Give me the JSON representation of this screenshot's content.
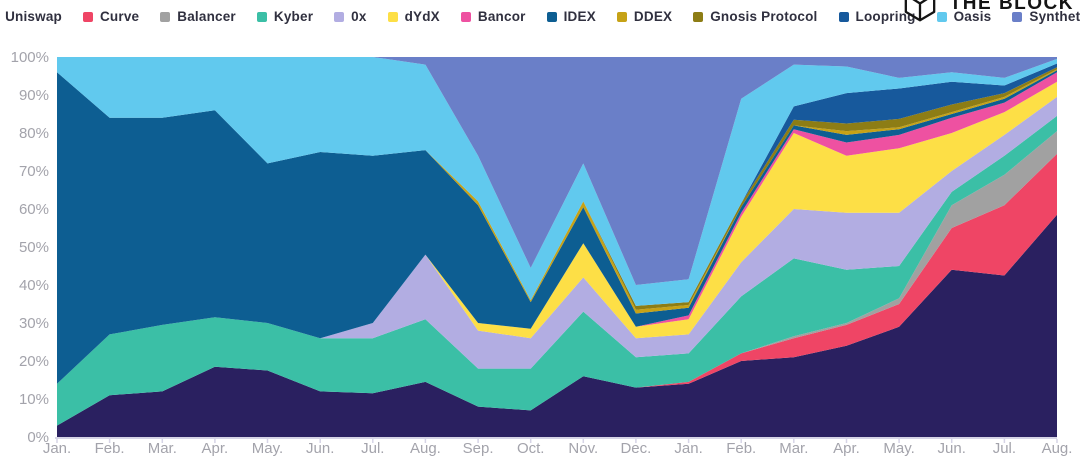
{
  "logo": {
    "text": "THE BLOCK",
    "icon": "cube-wireframe"
  },
  "axes": {
    "y_ticks": [
      "100%",
      "90%",
      "80%",
      "70%",
      "60%",
      "50%",
      "40%",
      "30%",
      "20%",
      "10%",
      "0%"
    ],
    "x_labels": [
      "Jan.",
      "Feb.",
      "Mar.",
      "Apr.",
      "May.",
      "Jun.",
      "Jul.",
      "Aug.",
      "Sep.",
      "Oct.",
      "Nov.",
      "Dec.",
      "Jan.",
      "Feb.",
      "Mar.",
      "Apr.",
      "May.",
      "Jun.",
      "Jul.",
      "Aug."
    ]
  },
  "chart_data": {
    "type": "area",
    "stacked": true,
    "percent_stacked": true,
    "legend_position": "top",
    "grid": false,
    "ylim": [
      0,
      100
    ],
    "ylabel": "",
    "xlabel": "",
    "categories": [
      "Jan.",
      "Feb.",
      "Mar.",
      "Apr.",
      "May.",
      "Jun.",
      "Jul.",
      "Aug.",
      "Sep.",
      "Oct.",
      "Nov.",
      "Dec.",
      "Jan.",
      "Feb.",
      "Mar.",
      "Apr.",
      "May.",
      "Jun.",
      "Jul.",
      "Aug."
    ],
    "units": "percent share of DEX volume",
    "series": [
      {
        "name": "Uniswap",
        "color": "#2a2060",
        "values": [
          3,
          11,
          12,
          18.5,
          17.5,
          12,
          11.5,
          14.5,
          8,
          7,
          16,
          13,
          14,
          20,
          21,
          24,
          29,
          44,
          42.5,
          58.5
        ]
      },
      {
        "name": "Curve",
        "color": "#ef4565",
        "values": [
          0,
          0,
          0,
          0,
          0,
          0,
          0,
          0,
          0,
          0,
          0,
          0,
          0.5,
          2,
          5,
          5.5,
          6,
          11,
          18.5,
          16
        ]
      },
      {
        "name": "Balancer",
        "color": "#a1a1a1",
        "values": [
          0,
          0,
          0,
          0,
          0,
          0,
          0,
          0,
          0,
          0,
          0,
          0,
          0,
          0,
          0.5,
          0.5,
          1.5,
          6,
          8,
          6
        ]
      },
      {
        "name": "Kyber",
        "color": "#3bbfa6",
        "values": [
          11,
          16,
          17.5,
          13,
          12.5,
          14,
          14.5,
          16.5,
          10,
          11,
          17,
          8,
          7.5,
          15,
          20.5,
          14,
          8.5,
          3.5,
          5,
          4
        ]
      },
      {
        "name": "0x",
        "color": "#b2ade2",
        "values": [
          0,
          0,
          0,
          0,
          0,
          0,
          4,
          17,
          10,
          8,
          9,
          5,
          5,
          9,
          13,
          15,
          14,
          5.5,
          5.5,
          5
        ]
      },
      {
        "name": "dYdX",
        "color": "#fddf46",
        "values": [
          0,
          0,
          0,
          0,
          0,
          0,
          0,
          0,
          2,
          2.5,
          9,
          3,
          4,
          12,
          20,
          15,
          17,
          10,
          6,
          4
        ]
      },
      {
        "name": "Bancor",
        "color": "#ee51a1",
        "values": [
          0,
          0,
          0,
          0,
          0,
          0,
          0,
          0,
          0,
          0,
          0,
          0,
          1,
          1,
          1,
          3.5,
          3.5,
          4,
          2.5,
          2.5
        ]
      },
      {
        "name": "IDEX",
        "color": "#0d5e92",
        "values": [
          82,
          57,
          54.5,
          54.5,
          42,
          49,
          44,
          27.5,
          31,
          7,
          9.5,
          3.5,
          2,
          1.5,
          1,
          2,
          1.5,
          1,
          1,
          0.5
        ]
      },
      {
        "name": "DDEX",
        "color": "#c6a216",
        "values": [
          0,
          0,
          0,
          0,
          0,
          0,
          0,
          0,
          1,
          0.5,
          1.5,
          1,
          0.75,
          0,
          0,
          1,
          0.5,
          0.5,
          0.5,
          0.3
        ]
      },
      {
        "name": "Gnosis Protocol",
        "color": "#8d7d15",
        "values": [
          0,
          0,
          0,
          0,
          0,
          0,
          0,
          0,
          0,
          0,
          0,
          1,
          0.75,
          1,
          1.5,
          2,
          2.2,
          2,
          1,
          0.5
        ]
      },
      {
        "name": "Loopring",
        "color": "#17599c",
        "values": [
          0,
          0,
          0,
          0,
          0,
          0,
          0,
          0,
          0,
          0,
          0,
          0,
          0,
          0,
          3.5,
          8,
          8,
          6,
          2,
          1
        ]
      },
      {
        "name": "Oasis",
        "color": "#61c9ee",
        "values": [
          4,
          16,
          16,
          14,
          28,
          25,
          26,
          22.5,
          12,
          8.5,
          10,
          5.5,
          6,
          27.5,
          11,
          7,
          2.8,
          2.5,
          2,
          1.2
        ]
      },
      {
        "name": "Synthetix",
        "color": "#6a7fc8",
        "values": [
          0,
          0,
          0,
          0,
          0,
          0,
          0,
          2,
          26,
          55.5,
          28,
          60,
          58.5,
          11,
          2,
          2.5,
          5.5,
          4,
          5.5,
          0.5
        ]
      }
    ]
  }
}
